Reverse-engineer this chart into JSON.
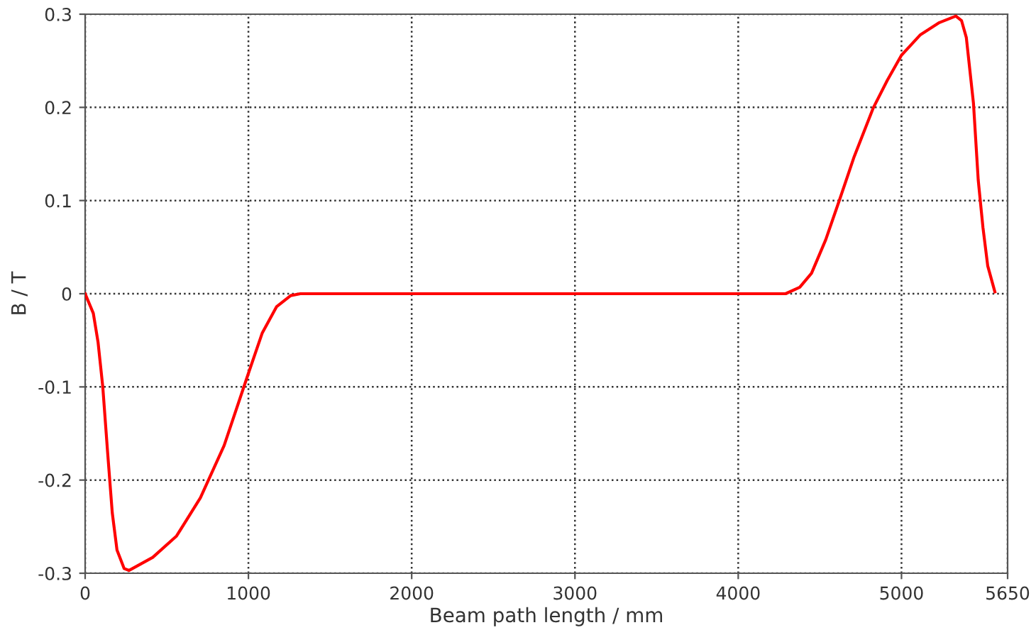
{
  "chart_data": {
    "type": "line",
    "xlabel": "Beam path length / mm",
    "ylabel": "B / T",
    "xlim": [
      0,
      5650
    ],
    "ylim": [
      -0.3,
      0.3
    ],
    "xticks": [
      0,
      1000,
      2000,
      3000,
      4000,
      5000,
      5650
    ],
    "yticks": [
      -0.3,
      -0.2,
      -0.1,
      0,
      0.1,
      0.2,
      0.3
    ],
    "grid": true,
    "line_style": "solid",
    "marker": "none",
    "series": [
      {
        "color": "#ff0000",
        "x": [
          0,
          50,
          79,
          108,
          137,
          166,
          195,
          239,
          268,
          414,
          560,
          706,
          851,
          997,
          1085,
          1172,
          1259,
          1318,
          2000,
          3000,
          4000,
          4290,
          4377,
          4449,
          4536,
          4623,
          4710,
          4826,
          4913,
          5000,
          5116,
          5232,
          5333,
          5368,
          5397,
          5441,
          5470,
          5499,
          5528,
          5572
        ],
        "values": [
          0,
          -0.021,
          -0.052,
          -0.1,
          -0.169,
          -0.235,
          -0.275,
          -0.295,
          -0.297,
          -0.283,
          -0.26,
          -0.219,
          -0.163,
          -0.087,
          -0.042,
          -0.014,
          -0.002,
          0,
          0,
          0,
          0,
          0,
          0.007,
          0.022,
          0.058,
          0.102,
          0.147,
          0.199,
          0.229,
          0.256,
          0.278,
          0.291,
          0.298,
          0.293,
          0.275,
          0.204,
          0.122,
          0.071,
          0.03,
          0.002
        ]
      }
    ]
  }
}
